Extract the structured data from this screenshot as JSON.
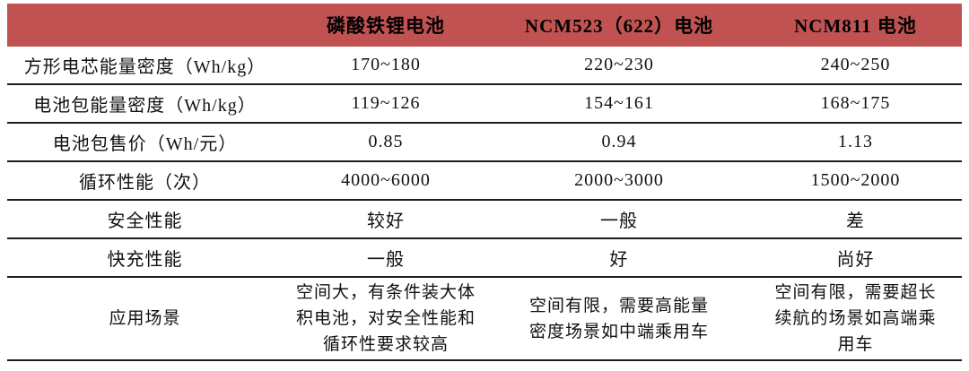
{
  "colors": {
    "header_bg": "#C05352",
    "header_text": "#000000",
    "rule": "#1c1c1c",
    "body_text": "#111111",
    "page_bg": "#ffffff"
  },
  "table": {
    "header": {
      "columns": [
        "",
        "磷酸铁锂电池",
        "NCM523（622）电池",
        "NCM811 电池"
      ]
    },
    "rows": [
      {
        "label": "方形电芯能量密度（Wh/kg）",
        "values": [
          "170~180",
          "220~230",
          "240~250"
        ]
      },
      {
        "label": "电池包能量密度（Wh/kg）",
        "values": [
          "119~126",
          "154~161",
          "168~175"
        ]
      },
      {
        "label": "电池包售价（Wh/元）",
        "values": [
          "0.85",
          "0.94",
          "1.13"
        ]
      },
      {
        "label": "循环性能（次）",
        "values": [
          "4000~6000",
          "2000~3000",
          "1500~2000"
        ]
      },
      {
        "label": "安全性能",
        "values": [
          "较好",
          "一般",
          "差"
        ]
      },
      {
        "label": "快充性能",
        "values": [
          "一般",
          "好",
          "尚好"
        ]
      },
      {
        "label": "应用场景",
        "values": [
          "空间大，有条件装大体积电池，对安全性能和循环性要求较高",
          "空间有限，需要高能量密度场景如中端乘用车",
          "空间有限，需要超长续航的场景如高端乘用车"
        ]
      }
    ]
  }
}
